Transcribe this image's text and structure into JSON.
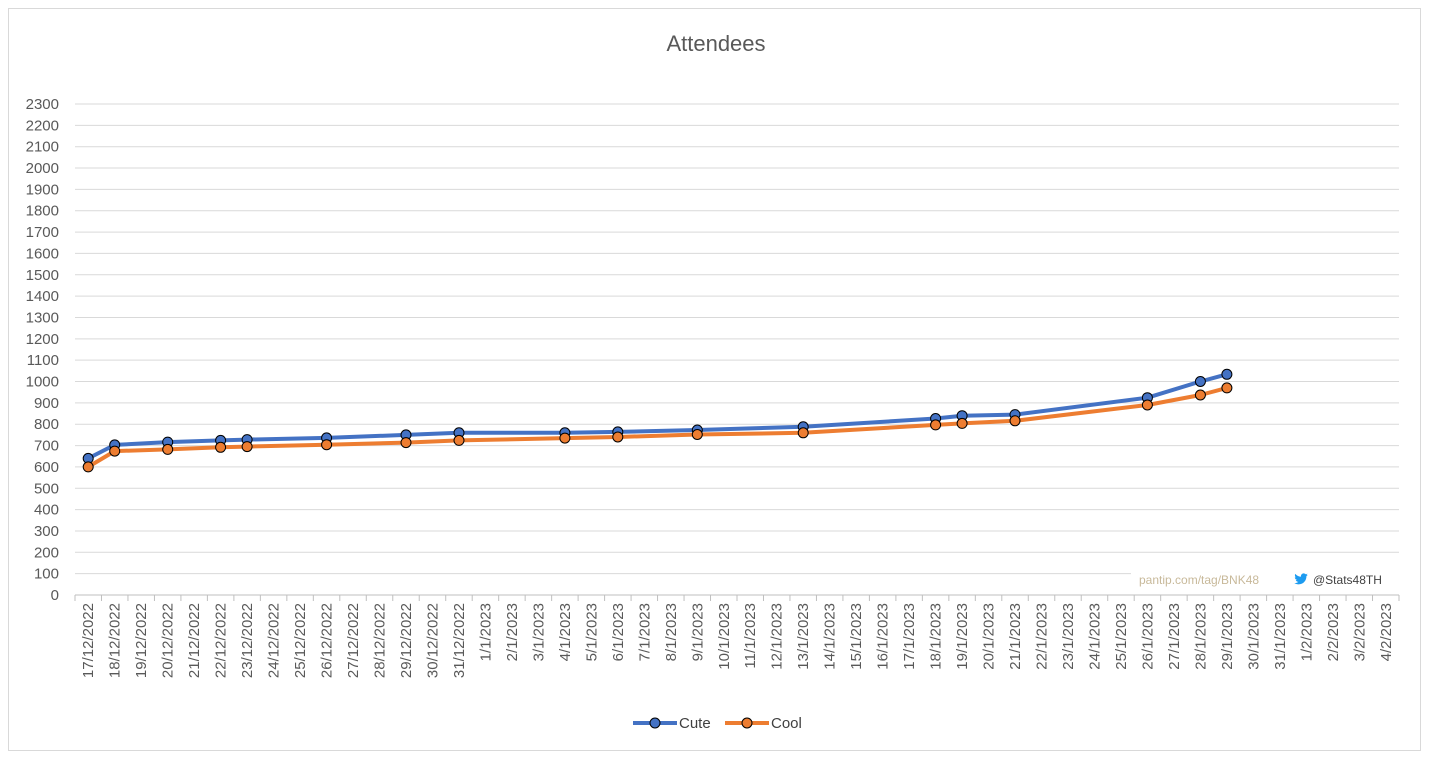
{
  "chart_data": {
    "type": "line",
    "title": "Attendees",
    "xlabel": "",
    "ylabel": "",
    "ylim": [
      0,
      2300
    ],
    "ytick_step": 100,
    "grid": true,
    "legend_position": "bottom",
    "x_categories": [
      "17/12/2022",
      "18/12/2022",
      "19/12/2022",
      "20/12/2022",
      "21/12/2022",
      "22/12/2022",
      "23/12/2022",
      "24/12/2022",
      "25/12/2022",
      "26/12/2022",
      "27/12/2022",
      "28/12/2022",
      "29/12/2022",
      "30/12/2022",
      "31/12/2022",
      "1/1/2023",
      "2/1/2023",
      "3/1/2023",
      "4/1/2023",
      "5/1/2023",
      "6/1/2023",
      "7/1/2023",
      "8/1/2023",
      "9/1/2023",
      "10/1/2023",
      "11/1/2023",
      "12/1/2023",
      "13/1/2023",
      "14/1/2023",
      "15/1/2023",
      "16/1/2023",
      "17/1/2023",
      "18/1/2023",
      "19/1/2023",
      "20/1/2023",
      "21/1/2023",
      "22/1/2023",
      "23/1/2023",
      "24/1/2023",
      "25/1/2023",
      "26/1/2023",
      "27/1/2023",
      "28/1/2023",
      "29/1/2023",
      "30/1/2023",
      "31/1/2023",
      "1/2/2023",
      "2/2/2023",
      "3/2/2023",
      "4/2/2023"
    ],
    "series": [
      {
        "name": "Cute",
        "color": "#4472c4",
        "points": [
          [
            "17/12/2022",
            640
          ],
          [
            "18/12/2022",
            703
          ],
          [
            "20/12/2022",
            716
          ],
          [
            "22/12/2022",
            724
          ],
          [
            "23/12/2022",
            728
          ],
          [
            "26/12/2022",
            736
          ],
          [
            "29/12/2022",
            750
          ],
          [
            "31/12/2022",
            760
          ],
          [
            "4/1/2023",
            760
          ],
          [
            "6/1/2023",
            764
          ],
          [
            "9/1/2023",
            773
          ],
          [
            "13/1/2023",
            788
          ],
          [
            "18/1/2023",
            827
          ],
          [
            "19/1/2023",
            840
          ],
          [
            "21/1/2023",
            845
          ],
          [
            "26/1/2023",
            924
          ],
          [
            "28/1/2023",
            1000
          ],
          [
            "29/1/2023",
            1034
          ]
        ]
      },
      {
        "name": "Cool",
        "color": "#ed7d31",
        "points": [
          [
            "17/12/2022",
            600
          ],
          [
            "18/12/2022",
            674
          ],
          [
            "20/12/2022",
            682
          ],
          [
            "22/12/2022",
            692
          ],
          [
            "23/12/2022",
            695
          ],
          [
            "26/12/2022",
            704
          ],
          [
            "29/12/2022",
            714
          ],
          [
            "31/12/2022",
            724
          ],
          [
            "4/1/2023",
            735
          ],
          [
            "6/1/2023",
            740
          ],
          [
            "9/1/2023",
            752
          ],
          [
            "13/1/2023",
            760
          ],
          [
            "18/1/2023",
            797
          ],
          [
            "19/1/2023",
            804
          ],
          [
            "21/1/2023",
            816
          ],
          [
            "26/1/2023",
            890
          ],
          [
            "28/1/2023",
            937
          ],
          [
            "29/1/2023",
            970
          ]
        ]
      }
    ]
  },
  "watermark": {
    "site": "pantip.com/tag/BNK48",
    "handle": "@Stats48TH",
    "icon": "twitter-bird-icon",
    "site_color": "#c8b99a",
    "icon_color": "#1d9bf0"
  }
}
